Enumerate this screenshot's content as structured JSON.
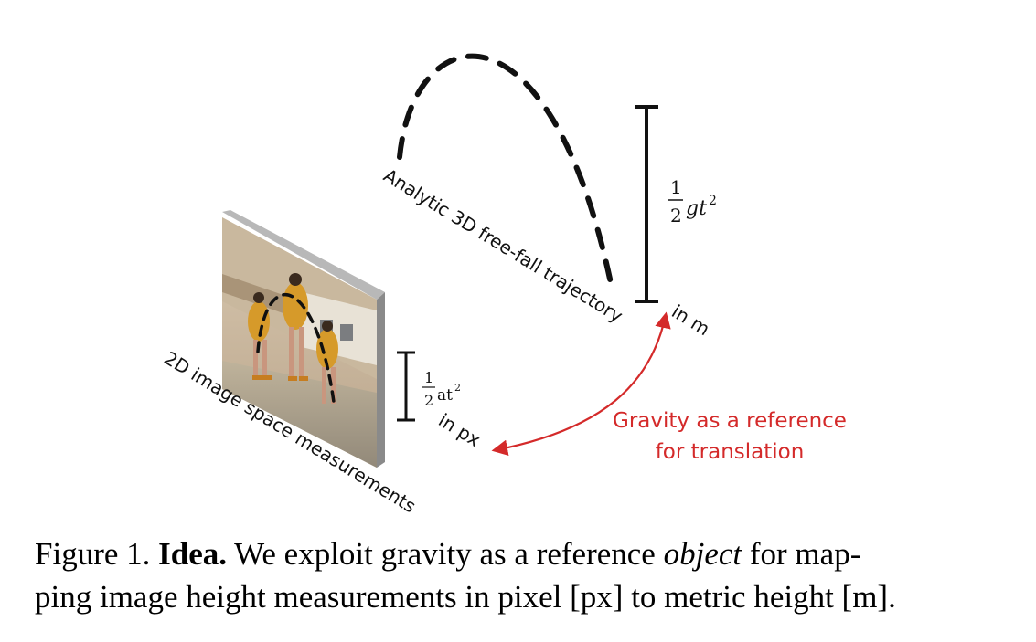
{
  "figure": {
    "trajectory_label": "Analytic 3D free-fall trajectory",
    "image_label": "2D image space measurements",
    "metric_unit_label": "in m",
    "pixel_unit_label": "in px",
    "metric_formula": {
      "numerator": "1",
      "denominator": "2",
      "expression": "gt",
      "exponent": "2"
    },
    "pixel_formula": {
      "numerator": "1",
      "denominator": "2",
      "expression": "at",
      "exponent": "2"
    },
    "annotation_lines": [
      "Gravity as a reference",
      "for translation"
    ],
    "colors": {
      "annotation": "#d42a2a",
      "ink": "#111111",
      "photo_frame": "#9a9a9a"
    }
  },
  "caption": {
    "prefix": "Figure 1.",
    "title": "Idea.",
    "text_before_italic": "We exploit gravity as a reference",
    "italic_word": "object",
    "text_after_italic_line1": "for map-",
    "line2": "ping image height measurements in pixel [px] to metric height [m]."
  }
}
